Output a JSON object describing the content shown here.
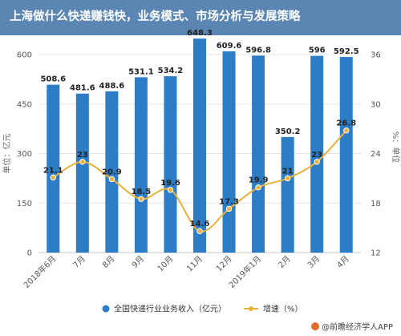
{
  "title": "上海做什么快递赚钱快，业务模式、市场分析与发展策略",
  "chart_data": {
    "type": "bar",
    "categories": [
      "2018年6月",
      "7月",
      "8月",
      "9月",
      "10月",
      "11月",
      "12月",
      "2019年1月",
      "2月",
      "3月",
      "4月"
    ],
    "series": [
      {
        "name": "全国快递行业业务收入（亿元）",
        "type": "bar",
        "axis": "left",
        "color": "#2d7cc6",
        "values": [
          508.6,
          481.6,
          488.6,
          531.1,
          534.2,
          648.3,
          609.6,
          596.8,
          350.2,
          596,
          592.5
        ],
        "labels": [
          "508.6",
          "481.6",
          "488.6",
          "531.1",
          "534.2",
          "648.3",
          "609.6",
          "596.8",
          "350.2",
          "596",
          "592.5"
        ]
      },
      {
        "name": "增速（%）",
        "type": "line",
        "axis": "right",
        "color": "#e8b23c",
        "values": [
          21.1,
          23,
          20.9,
          18.5,
          19.6,
          14.6,
          17.3,
          19.9,
          21,
          23,
          26.8
        ],
        "labels": [
          "21.1",
          "23",
          "20.9",
          "18.5",
          "19.6",
          "14.6",
          "17.3",
          "19.9",
          "21",
          "23",
          "26.8"
        ]
      }
    ],
    "y_left": {
      "label": "单位：亿元",
      "min": 0,
      "max": 600,
      "ticks": [
        0,
        150,
        300,
        450,
        600
      ]
    },
    "y_right": {
      "label": "%：单位",
      "min": 12,
      "max": 36,
      "ticks": [
        12,
        18,
        24,
        30,
        36
      ]
    },
    "grid": true,
    "legend_position": "bottom"
  },
  "footer": {
    "source": "@前瞻经济学人APP"
  }
}
